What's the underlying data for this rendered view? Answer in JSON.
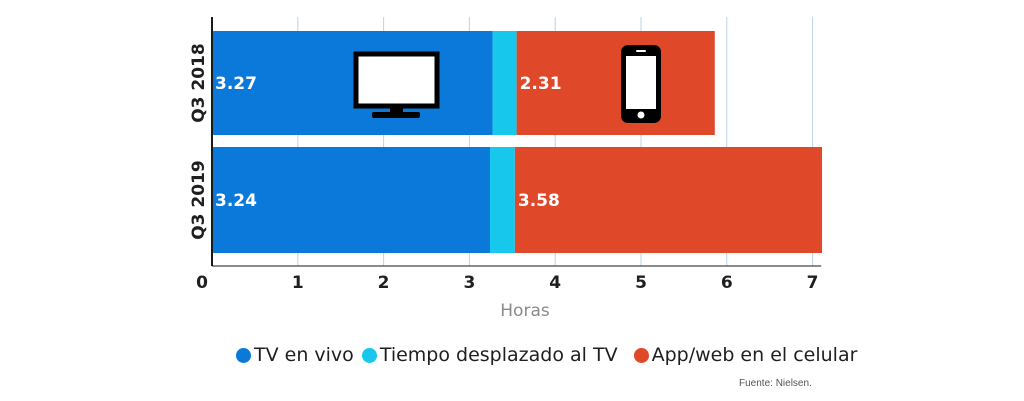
{
  "chart_data": {
    "type": "bar",
    "orientation": "horizontal",
    "stacked": true,
    "categories": [
      "Q3 2018",
      "Q3 2019"
    ],
    "series": [
      {
        "name": "TV en vivo",
        "values": [
          3.27,
          3.24
        ],
        "color": "#0b79d9"
      },
      {
        "name": "Tiempo desplazado al TV",
        "values": [
          0.28,
          0.29
        ],
        "color": "#17c7ec"
      },
      {
        "name": "App/web en el celular",
        "values": [
          2.31,
          3.58
        ],
        "color": "#e0482a"
      }
    ],
    "data_labels": [
      {
        "series": "TV en vivo",
        "category": "Q3 2018",
        "text": "3.27"
      },
      {
        "series": "App/web en el celular",
        "category": "Q3 2018",
        "text": "2.31"
      },
      {
        "series": "TV en vivo",
        "category": "Q3 2019",
        "text": "3.24"
      },
      {
        "series": "App/web en el celular",
        "category": "Q3 2019",
        "text": "3.58"
      }
    ],
    "xlabel": "Horas",
    "ylabel": "",
    "xlim": [
      0,
      7.1
    ],
    "xticks": [
      0,
      1,
      2,
      3,
      4,
      5,
      6,
      7
    ],
    "grid": true,
    "legend_position": "bottom",
    "icons": [
      "tv-icon",
      "smartphone-icon"
    ],
    "axis_color": "#1a1a1a",
    "grid_color": "#b8d4ec"
  },
  "legend": {
    "items": [
      {
        "label": "TV en vivo",
        "color": "#0b79d9"
      },
      {
        "label": "Tiempo desplazado al TV",
        "color": "#17c7ec"
      },
      {
        "label": "App/web en el celular",
        "color": "#e0482a"
      }
    ]
  },
  "source": "Fuente: Nielsen."
}
